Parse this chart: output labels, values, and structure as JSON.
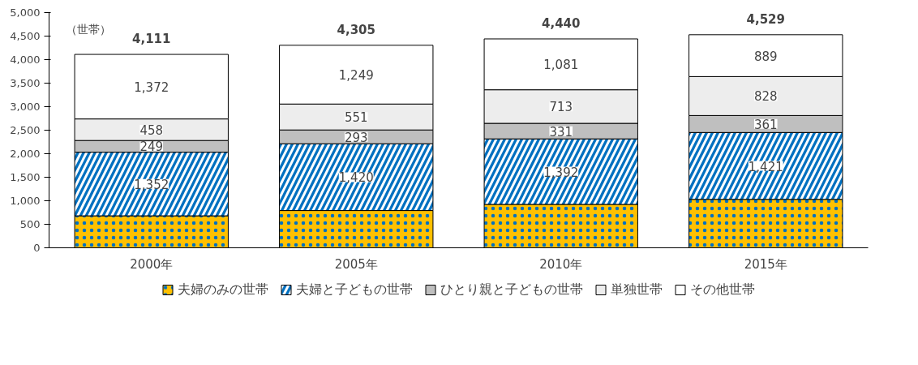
{
  "chart_data": {
    "type": "bar",
    "stacked": true,
    "categories": [
      "2000年",
      "2005年",
      "2010年",
      "2015年"
    ],
    "series": [
      {
        "name": "夫婦のみの世帯",
        "color": "#ffc000",
        "values": [
          680,
          792,
          923,
          1030
        ],
        "value_labels": [
          null,
          null,
          null,
          null
        ]
      },
      {
        "name": "夫婦と子どもの世帯",
        "color": "#0070c0",
        "values": [
          1352,
          1420,
          1392,
          1421
        ],
        "value_labels": [
          "1,352",
          "1,420",
          "1,392",
          "1,421"
        ]
      },
      {
        "name": "ひとり親と子どもの世帯",
        "color": "#bfbfbf",
        "values": [
          249,
          293,
          331,
          361
        ],
        "value_labels": [
          "249",
          "293",
          "331",
          "361"
        ]
      },
      {
        "name": "単独世帯",
        "color": "#ededed",
        "values": [
          458,
          551,
          713,
          828
        ],
        "value_labels": [
          "458",
          "551",
          "713",
          "828"
        ]
      },
      {
        "name": "その他世帯",
        "color": "#ffffff",
        "values": [
          1372,
          1249,
          1081,
          889
        ],
        "value_labels": [
          "1,372",
          "1,249",
          "1,081",
          "889"
        ]
      }
    ],
    "totals": [
      "4,111",
      "4,305",
      "4,440",
      "4,529"
    ],
    "ylim": [
      0,
      5000
    ],
    "yticks": [
      {
        "value": 0,
        "label": "0"
      },
      {
        "value": 500,
        "label": "500"
      },
      {
        "value": 1000,
        "label": "1,000"
      },
      {
        "value": 1500,
        "label": "1,500"
      },
      {
        "value": 2000,
        "label": "2,000"
      },
      {
        "value": 2500,
        "label": "2,500"
      },
      {
        "value": 3000,
        "label": "3,000"
      },
      {
        "value": 3500,
        "label": "3,500"
      },
      {
        "value": 4000,
        "label": "4,000"
      },
      {
        "value": 4500,
        "label": "4,500"
      },
      {
        "value": 5000,
        "label": "5,000"
      }
    ],
    "annotations": [
      "（世帯）"
    ],
    "grid": false,
    "legend": "bottom"
  }
}
